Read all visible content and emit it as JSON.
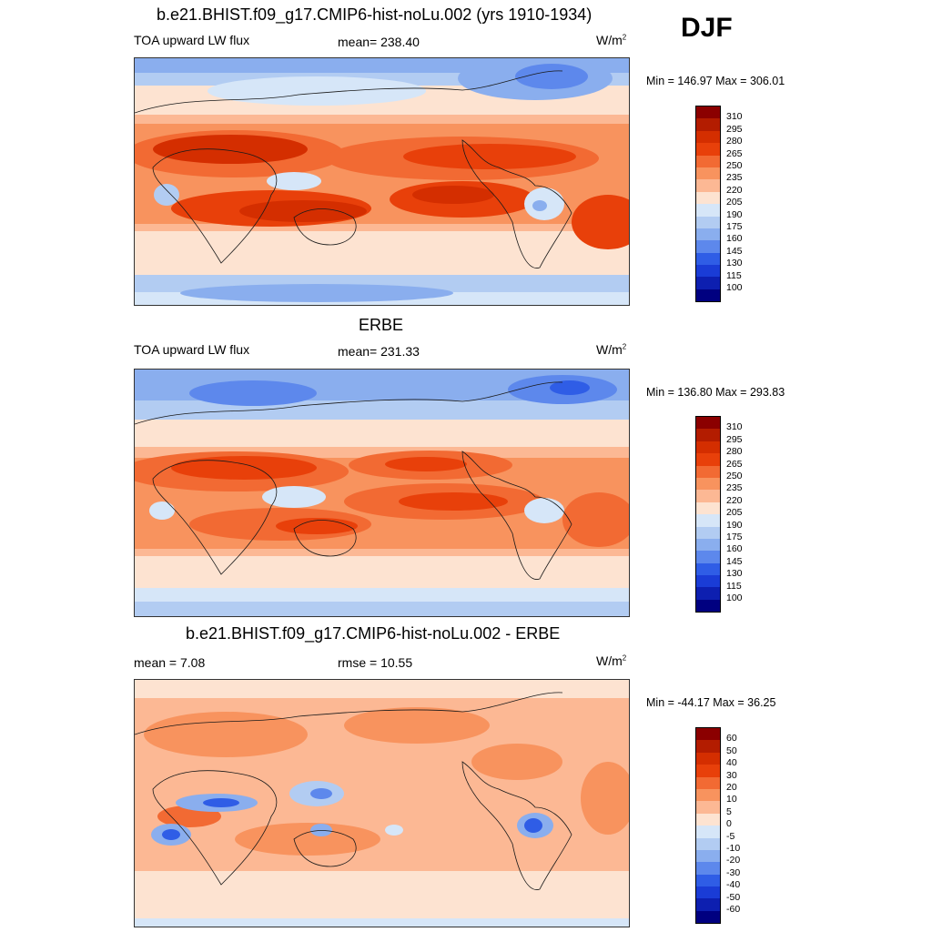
{
  "season": "DJF",
  "panels": [
    {
      "title": "b.e21.BHIST.f09_g17.CMIP6-hist-noLu.002 (yrs 1910-1934)",
      "left_label": "TOA upward LW flux",
      "center_label": "mean= 238.40",
      "units": "W/m",
      "units_sup": "2",
      "minmax": "Min = 146.97 Max = 306.01"
    },
    {
      "title": "ERBE",
      "left_label": "TOA upward LW flux",
      "center_label": "mean= 231.33",
      "units": "W/m",
      "units_sup": "2",
      "minmax": "Min = 136.80 Max = 293.83"
    },
    {
      "title": "b.e21.BHIST.f09_g17.CMIP6-hist-noLu.002 - ERBE",
      "left_label": "mean =   7.08",
      "center_label": "rmse =  10.55",
      "units": "W/m",
      "units_sup": "2",
      "minmax": "Min = -44.17 Max =  36.25"
    }
  ],
  "colorbar_abs": {
    "labels": [
      "310",
      "295",
      "280",
      "265",
      "250",
      "235",
      "220",
      "205",
      "190",
      "175",
      "160",
      "145",
      "130",
      "115",
      "100"
    ],
    "colors": [
      "#8b0000",
      "#b31c00",
      "#d42e00",
      "#e8400a",
      "#f26a33",
      "#f8935e",
      "#fcb894",
      "#fde3d1",
      "#d6e6f8",
      "#b2ccf2",
      "#8aaeee",
      "#5d88ec",
      "#2f5de6",
      "#1a3cd6",
      "#0d1fb0",
      "#000080"
    ]
  },
  "colorbar_diff": {
    "labels": [
      "60",
      "50",
      "40",
      "30",
      "20",
      "10",
      "5",
      "0",
      "-5",
      "-10",
      "-20",
      "-30",
      "-40",
      "-50",
      "-60"
    ],
    "colors": [
      "#8b0000",
      "#b31c00",
      "#d42e00",
      "#e8400a",
      "#f26a33",
      "#f8935e",
      "#fcb894",
      "#fde3d1",
      "#d6e6f8",
      "#b2ccf2",
      "#8aaeee",
      "#5d88ec",
      "#2f5de6",
      "#1a3cd6",
      "#0d1fb0",
      "#000080"
    ]
  }
}
